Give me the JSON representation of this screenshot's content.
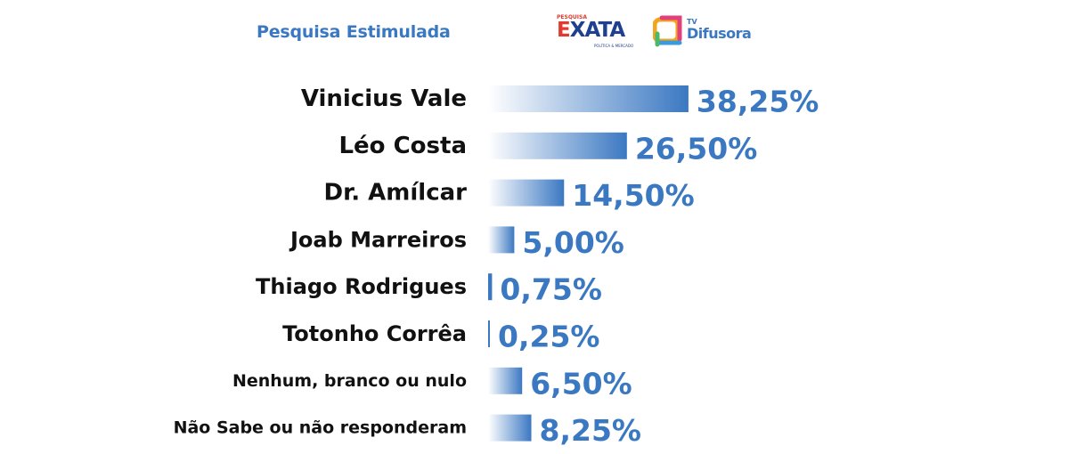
{
  "title": "Pesquisa Estimulada",
  "logos": {
    "exata": {
      "top": "PESQUISA",
      "word_e": "E",
      "word_rest": "XATA",
      "sub": "POLÍTICA & MERCADO"
    },
    "tv": {
      "tv": "TV",
      "name": "Difusora"
    }
  },
  "colors": {
    "bar_start": "#ffffff",
    "bar_end": "#3b78c2",
    "value_text": "#3b78c2",
    "label_text": "#111111"
  },
  "chart_data": {
    "type": "bar",
    "orientation": "horizontal",
    "categories": [
      "Vinicius Vale",
      "Léo Costa",
      "Dr. Amílcar",
      "Joab Marreiros",
      "Thiago Rodrigues",
      "Totonho Corrêa",
      "Nenhum, branco ou nulo",
      "Não Sabe ou não responderam"
    ],
    "values": [
      38.25,
      26.5,
      14.5,
      5.0,
      0.75,
      0.25,
      6.5,
      8.25
    ],
    "value_labels": [
      "38,25%",
      "26,50%",
      "14,50%",
      "5,00%",
      "0,75%",
      "0,25%",
      "6,50%",
      "8,25%"
    ],
    "grid": false,
    "legend": "none"
  }
}
